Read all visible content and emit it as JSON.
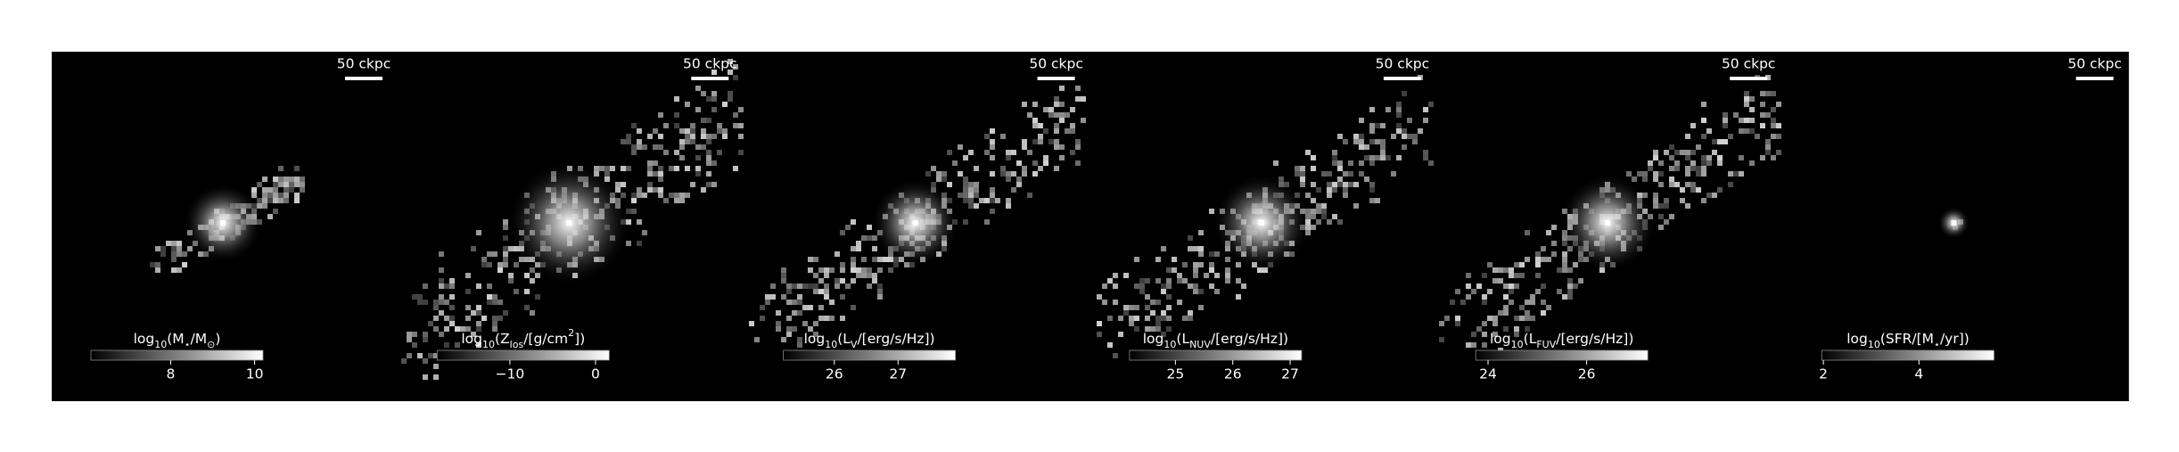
{
  "chart_data": [
    {
      "type": "image",
      "scale_bar": "50 ckpc",
      "colorbar_label": [
        "log",
        {
          "sub": "10"
        },
        "(",
        "M",
        {
          "sub": "⋆"
        },
        "/M",
        {
          "sub": "⊙"
        },
        ")"
      ],
      "clim": [
        6.1,
        10.2
      ],
      "cticks": [
        8,
        10
      ]
    },
    {
      "type": "image",
      "scale_bar": "50 ckpc",
      "colorbar_label": [
        "log",
        {
          "sub": "10"
        },
        "(Z",
        {
          "sub": "los"
        },
        "/[g/cm",
        {
          "sup": "2"
        },
        "])"
      ],
      "clim": [
        -18.5,
        1.6
      ],
      "cticks": [
        {
          "value": -10,
          "label": "−10"
        },
        0
      ]
    },
    {
      "type": "image",
      "scale_bar": "50 ckpc",
      "colorbar_label": [
        "log",
        {
          "sub": "10"
        },
        "(L",
        {
          "sub": "V"
        },
        "/[erg/s/Hz])"
      ],
      "clim": [
        25.2,
        27.9
      ],
      "cticks": [
        26,
        27
      ]
    },
    {
      "type": "image",
      "scale_bar": "50 ckpc",
      "colorbar_label": [
        "log",
        {
          "sub": "10"
        },
        "(L",
        {
          "sub": "NUV"
        },
        "/[erg/s/Hz])"
      ],
      "clim": [
        24.2,
        27.2
      ],
      "cticks": [
        25,
        26,
        27
      ]
    },
    {
      "type": "image",
      "scale_bar": "50 ckpc",
      "colorbar_label": [
        "log",
        {
          "sub": "10"
        },
        "(L",
        {
          "sub": "FUV"
        },
        "/[erg/s/Hz])"
      ],
      "clim": [
        23.75,
        27.24
      ],
      "cticks": [
        24,
        26
      ]
    },
    {
      "type": "image",
      "scale_bar": "50 ckpc",
      "colorbar_label": [
        "log",
        {
          "sub": "10"
        },
        "(SFR/[M",
        {
          "sub": "⋆"
        },
        "/yr])"
      ],
      "clim": [
        1.97,
        5.57
      ],
      "cticks": [
        2,
        4
      ]
    }
  ]
}
